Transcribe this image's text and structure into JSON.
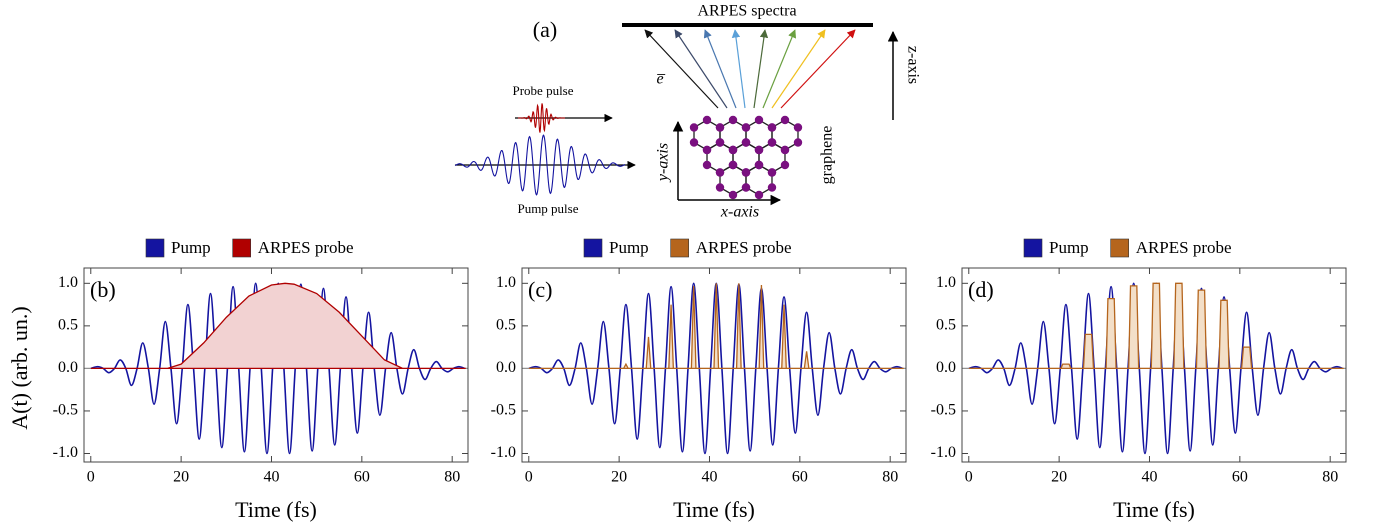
{
  "diagram": {
    "panel_label": "(a)",
    "screen_label": "ARPES spectra",
    "electron_label": "e̅",
    "z_label": "z-axis",
    "probe_label": "Probe pulse",
    "pump_label": "Pump pulse",
    "y_label": "y-axis",
    "x_label": "x-axis",
    "material_label": "graphene"
  },
  "y_axis_label": "A(t) (arb. un.)",
  "chart_data": [
    {
      "type": "line",
      "panel_label": "(b)",
      "x_label": "Time (fs)",
      "xlim": [
        -1.5,
        83.5
      ],
      "ylim": [
        -1.1,
        1.18
      ],
      "xticks": [
        0,
        20,
        40,
        60,
        80
      ],
      "yticks": [
        {
          "value": -1.0,
          "label": "-1.0"
        },
        {
          "value": -0.5,
          "label": "-0.5"
        },
        {
          "value": 0.0,
          "label": "0.0"
        },
        {
          "value": 0.5,
          "label": "0.5"
        },
        {
          "value": 1.0,
          "label": "1.0"
        }
      ],
      "series": [
        {
          "name": "Pump",
          "color": "#1414a0",
          "x": [
            0,
            1.5,
            2.75,
            4,
            5.25,
            6.5,
            7.75,
            9,
            10.25,
            11.5,
            12.75,
            14,
            15.25,
            16.5,
            17.75,
            19,
            20.25,
            21.5,
            22.75,
            24,
            25.25,
            26.5,
            27.75,
            29,
            30.25,
            31.5,
            32.75,
            34,
            35.25,
            36.5,
            37.75,
            39,
            40.25,
            41.5,
            42.75,
            44,
            45.25,
            46.5,
            47.75,
            49,
            50.25,
            51.5,
            52.75,
            54,
            55.25,
            56.5,
            57.75,
            59,
            60.25,
            61.5,
            62.75,
            64,
            65.25,
            66.5,
            67.75,
            69,
            70.25,
            71.5,
            72.75,
            74,
            75.25,
            76.5,
            77.75,
            79,
            80.25,
            81.5,
            82.75
          ],
          "values": [
            0,
            0.02,
            0,
            -0.05,
            0,
            0.1,
            0,
            -0.2,
            0,
            0.3,
            0,
            -0.42,
            0,
            0.55,
            0,
            -0.65,
            0,
            0.75,
            0,
            -0.83,
            0,
            0.88,
            0,
            -0.93,
            0,
            0.96,
            0,
            -0.98,
            0,
            1.0,
            0,
            -1.0,
            0,
            1.0,
            0,
            -1.0,
            0,
            0.99,
            0,
            -0.97,
            0,
            0.94,
            0,
            -0.9,
            0,
            0.84,
            0,
            -0.76,
            0,
            0.66,
            0,
            -0.55,
            0,
            0.42,
            0,
            -0.3,
            0,
            0.22,
            0,
            -0.13,
            0,
            0.08,
            0,
            -0.04,
            0,
            0.02,
            0
          ]
        },
        {
          "name": "ARPES probe",
          "color": "#b00000",
          "fill": "#f2d2d2",
          "x": [
            0,
            17,
            20,
            25,
            30,
            35,
            40,
            43,
            45,
            50,
            55,
            60,
            65,
            69,
            83
          ],
          "values": [
            0,
            0,
            0.05,
            0.3,
            0.6,
            0.85,
            0.98,
            1.0,
            0.99,
            0.88,
            0.66,
            0.38,
            0.1,
            0,
            0
          ]
        }
      ]
    },
    {
      "type": "line",
      "panel_label": "(c)",
      "x_label": "Time (fs)",
      "xlim": [
        -1.5,
        83.5
      ],
      "ylim": [
        -1.1,
        1.18
      ],
      "xticks": [
        0,
        20,
        40,
        60,
        80
      ],
      "yticks": [
        {
          "value": -1.0,
          "label": "-1.0"
        },
        {
          "value": -0.5,
          "label": "-0.5"
        },
        {
          "value": 0.0,
          "label": "0.0"
        },
        {
          "value": 0.5,
          "label": "0.5"
        },
        {
          "value": 1.0,
          "label": "1.0"
        }
      ],
      "series": [
        {
          "name": "Pump",
          "color": "#1414a0",
          "x": [
            0,
            1.5,
            2.75,
            4,
            5.25,
            6.5,
            7.75,
            9,
            10.25,
            11.5,
            12.75,
            14,
            15.25,
            16.5,
            17.75,
            19,
            20.25,
            21.5,
            22.75,
            24,
            25.25,
            26.5,
            27.75,
            29,
            30.25,
            31.5,
            32.75,
            34,
            35.25,
            36.5,
            37.75,
            39,
            40.25,
            41.5,
            42.75,
            44,
            45.25,
            46.5,
            47.75,
            49,
            50.25,
            51.5,
            52.75,
            54,
            55.25,
            56.5,
            57.75,
            59,
            60.25,
            61.5,
            62.75,
            64,
            65.25,
            66.5,
            67.75,
            69,
            70.25,
            71.5,
            72.75,
            74,
            75.25,
            76.5,
            77.75,
            79,
            80.25,
            81.5,
            82.75
          ],
          "values": [
            0,
            0.02,
            0,
            -0.05,
            0,
            0.1,
            0,
            -0.2,
            0,
            0.3,
            0,
            -0.42,
            0,
            0.55,
            0,
            -0.65,
            0,
            0.75,
            0,
            -0.83,
            0,
            0.88,
            0,
            -0.93,
            0,
            0.96,
            0,
            -0.98,
            0,
            1.0,
            0,
            -1.0,
            0,
            1.0,
            0,
            -1.0,
            0,
            0.99,
            0,
            -0.97,
            0,
            0.94,
            0,
            -0.9,
            0,
            0.84,
            0,
            -0.76,
            0,
            0.66,
            0,
            -0.55,
            0,
            0.42,
            0,
            -0.3,
            0,
            0.22,
            0,
            -0.13,
            0,
            0.08,
            0,
            -0.04,
            0,
            0.02,
            0
          ]
        },
        {
          "name": "ARPES probe",
          "color": "#b5651d",
          "fill": "#f3dfc8",
          "x": [
            0,
            21,
            21.5,
            22,
            26,
            26.5,
            27,
            31,
            31.5,
            32,
            36,
            36.5,
            37,
            41,
            41.5,
            42,
            46,
            46.5,
            47,
            51,
            51.5,
            52,
            56,
            56.5,
            57,
            61,
            61.5,
            62,
            83
          ],
          "values": [
            0,
            0,
            0.05,
            0,
            0,
            0.37,
            0,
            0,
            0.75,
            0,
            0,
            0.97,
            0,
            0,
            1.0,
            0,
            0,
            1.0,
            0,
            0,
            0.98,
            0,
            0,
            0.75,
            0,
            0,
            0.2,
            0,
            0
          ]
        }
      ]
    },
    {
      "type": "line",
      "panel_label": "(d)",
      "x_label": "Time (fs)",
      "xlim": [
        -1.5,
        83.5
      ],
      "ylim": [
        -1.1,
        1.18
      ],
      "xticks": [
        0,
        20,
        40,
        60,
        80
      ],
      "yticks": [
        {
          "value": -1.0,
          "label": "-1.0"
        },
        {
          "value": -0.5,
          "label": "-0.5"
        },
        {
          "value": 0.0,
          "label": "0.0"
        },
        {
          "value": 0.5,
          "label": "0.5"
        },
        {
          "value": 1.0,
          "label": "1.0"
        }
      ],
      "series": [
        {
          "name": "Pump",
          "color": "#1414a0",
          "x": [
            0,
            1.5,
            2.75,
            4,
            5.25,
            6.5,
            7.75,
            9,
            10.25,
            11.5,
            12.75,
            14,
            15.25,
            16.5,
            17.75,
            19,
            20.25,
            21.5,
            22.75,
            24,
            25.25,
            26.5,
            27.75,
            29,
            30.25,
            31.5,
            32.75,
            34,
            35.25,
            36.5,
            37.75,
            39,
            40.25,
            41.5,
            42.75,
            44,
            45.25,
            46.5,
            47.75,
            49,
            50.25,
            51.5,
            52.75,
            54,
            55.25,
            56.5,
            57.75,
            59,
            60.25,
            61.5,
            62.75,
            64,
            65.25,
            66.5,
            67.75,
            69,
            70.25,
            71.5,
            72.75,
            74,
            75.25,
            76.5,
            77.75,
            79,
            80.25,
            81.5,
            82.75
          ],
          "values": [
            0,
            0.02,
            0,
            -0.05,
            0,
            0.1,
            0,
            -0.2,
            0,
            0.3,
            0,
            -0.42,
            0,
            0.55,
            0,
            -0.65,
            0,
            0.75,
            0,
            -0.83,
            0,
            0.88,
            0,
            -0.93,
            0,
            0.96,
            0,
            -0.98,
            0,
            1.0,
            0,
            -1.0,
            0,
            1.0,
            0,
            -1.0,
            0,
            0.99,
            0,
            -0.97,
            0,
            0.94,
            0,
            -0.9,
            0,
            0.84,
            0,
            -0.76,
            0,
            0.66,
            0,
            -0.55,
            0,
            0.42,
            0,
            -0.3,
            0,
            0.22,
            0,
            -0.13,
            0,
            0.08,
            0,
            -0.04,
            0,
            0.02,
            0
          ]
        },
        {
          "name": "ARPES probe",
          "color": "#b5651d",
          "fill": "#f3dfc8",
          "x": [
            0,
            20.4,
            20.8,
            22.2,
            22.6,
            25.4,
            25.8,
            27.2,
            27.6,
            30.4,
            30.8,
            32.2,
            32.6,
            35.4,
            35.8,
            37.2,
            37.6,
            40.4,
            40.8,
            42.2,
            42.6,
            45.4,
            45.8,
            47.2,
            47.6,
            50.4,
            50.8,
            52.2,
            52.6,
            55.4,
            55.8,
            57.2,
            57.6,
            60.4,
            60.8,
            62.2,
            62.6,
            83
          ],
          "values": [
            0,
            0,
            0.05,
            0.05,
            0,
            0,
            0.4,
            0.4,
            0,
            0,
            0.82,
            0.82,
            0,
            0,
            0.97,
            0.97,
            0,
            0,
            1.0,
            1.0,
            0,
            0,
            1.0,
            1.0,
            0,
            0,
            0.92,
            0.92,
            0,
            0,
            0.8,
            0.8,
            0,
            0,
            0.25,
            0.25,
            0,
            0
          ]
        }
      ]
    }
  ]
}
